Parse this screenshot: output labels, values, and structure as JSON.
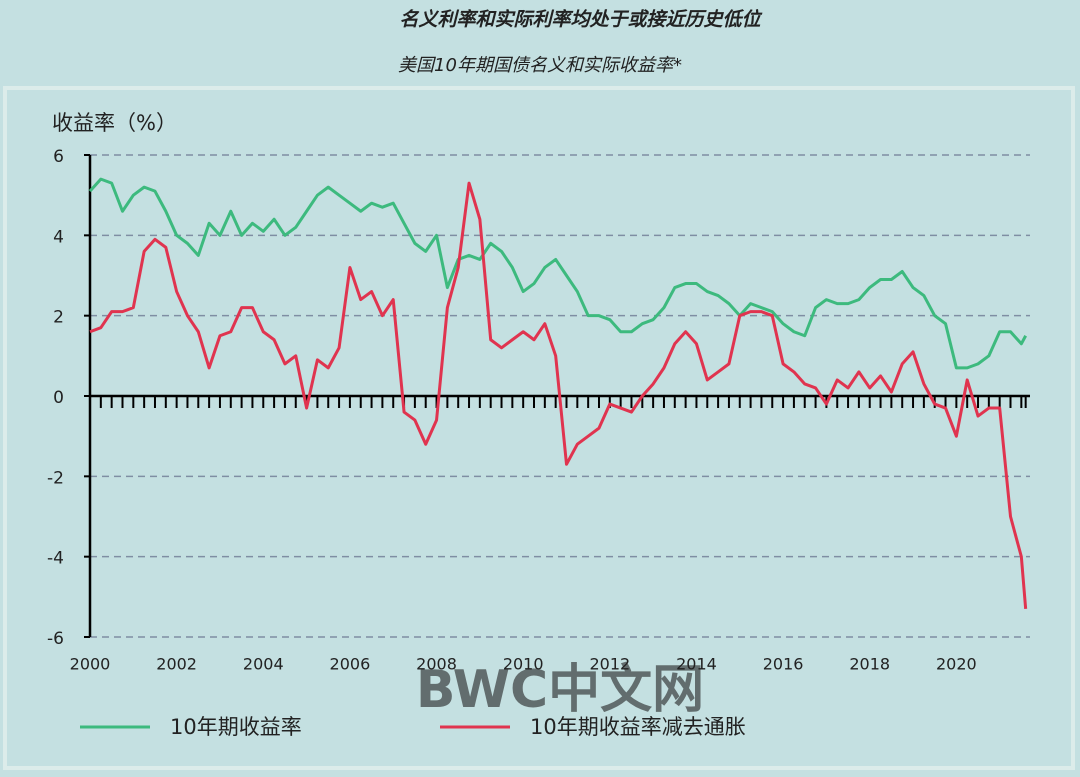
{
  "chart_data": {
    "type": "line",
    "title": "名义利率和实际利率均处于或接近历史低位",
    "subtitle": "美国10年期国债名义和实际收益率*",
    "y_label": "收益率（%）",
    "watermark": "BWC中文网",
    "x": [
      2000,
      2000.25,
      2000.5,
      2000.75,
      2001,
      2001.25,
      2001.5,
      2001.75,
      2002,
      2002.25,
      2002.5,
      2002.75,
      2003,
      2003.25,
      2003.5,
      2003.75,
      2004,
      2004.25,
      2004.5,
      2004.75,
      2005,
      2005.25,
      2005.5,
      2005.75,
      2006,
      2006.25,
      2006.5,
      2006.75,
      2007,
      2007.25,
      2007.5,
      2007.75,
      2008,
      2008.25,
      2008.5,
      2008.75,
      2009,
      2009.25,
      2009.5,
      2009.75,
      2010,
      2010.25,
      2010.5,
      2010.75,
      2011,
      2011.25,
      2011.5,
      2011.75,
      2012,
      2012.25,
      2012.5,
      2012.75,
      2013,
      2013.25,
      2013.5,
      2013.75,
      2014,
      2014.25,
      2014.5,
      2014.75,
      2015,
      2015.25,
      2015.5,
      2015.75,
      2016,
      2016.25,
      2016.5,
      2016.75,
      2017,
      2017.25,
      2017.5,
      2017.75,
      2018,
      2018.25,
      2018.5,
      2018.75,
      2019,
      2019.25,
      2019.5,
      2019.75,
      2020,
      2020.25,
      2020.5,
      2020.75,
      2021,
      2021.25,
      2021.5,
      2021.6
    ],
    "series": [
      {
        "name": "10年期收益率",
        "color": "#3dba7e",
        "values": [
          5.1,
          5.4,
          5.3,
          4.6,
          5.0,
          5.2,
          5.1,
          4.6,
          4.0,
          3.8,
          3.5,
          4.3,
          4.0,
          4.6,
          4.0,
          4.3,
          4.1,
          4.4,
          4.0,
          4.2,
          4.6,
          5.0,
          5.2,
          5.0,
          4.8,
          4.6,
          4.8,
          4.7,
          4.8,
          4.3,
          3.8,
          3.6,
          4.0,
          2.7,
          3.4,
          3.5,
          3.4,
          3.8,
          3.6,
          3.2,
          2.6,
          2.8,
          3.2,
          3.4,
          3.0,
          2.6,
          2.0,
          2.0,
          1.9,
          1.6,
          1.6,
          1.8,
          1.9,
          2.2,
          2.7,
          2.8,
          2.8,
          2.6,
          2.5,
          2.3,
          2.0,
          2.3,
          2.2,
          2.1,
          1.8,
          1.6,
          1.5,
          2.2,
          2.4,
          2.3,
          2.3,
          2.4,
          2.7,
          2.9,
          2.9,
          3.1,
          2.7,
          2.5,
          2.0,
          1.8,
          0.7,
          0.7,
          0.8,
          1.0,
          1.6,
          1.6,
          1.3,
          1.5
        ]
      },
      {
        "name": "10年期收益率减去通胀",
        "color": "#e0344f",
        "values": [
          1.6,
          1.7,
          2.1,
          2.1,
          2.2,
          3.6,
          3.9,
          3.7,
          2.6,
          2.0,
          1.6,
          0.7,
          1.5,
          1.6,
          2.2,
          2.2,
          1.6,
          1.4,
          0.8,
          1.0,
          -0.3,
          0.9,
          0.7,
          1.2,
          3.2,
          2.4,
          2.6,
          2.0,
          2.4,
          -0.4,
          -0.6,
          -1.2,
          -0.6,
          2.2,
          3.2,
          5.3,
          4.4,
          1.4,
          1.2,
          1.4,
          1.6,
          1.4,
          1.8,
          1.0,
          -1.7,
          -1.2,
          -1.0,
          -0.8,
          -0.2,
          -0.3,
          -0.4,
          0.0,
          0.3,
          0.7,
          1.3,
          1.6,
          1.3,
          0.4,
          0.6,
          0.8,
          2.0,
          2.1,
          2.1,
          2.0,
          0.8,
          0.6,
          0.3,
          0.2,
          -0.2,
          0.4,
          0.2,
          0.6,
          0.2,
          0.5,
          0.1,
          0.8,
          1.1,
          0.3,
          -0.2,
          -0.3,
          -1.0,
          0.4,
          -0.5,
          -0.3,
          -0.3,
          -3.0,
          -4.0,
          -5.3
        ]
      }
    ],
    "xlim": [
      2000,
      2021.7
    ],
    "xticks": [
      2000,
      2002,
      2004,
      2006,
      2008,
      2010,
      2012,
      2014,
      2016,
      2018,
      2020
    ],
    "ylim": [
      -6,
      6
    ],
    "yticks": [
      -6,
      -4,
      -2,
      0,
      2,
      4,
      6
    ],
    "grid": true,
    "legend": "bottom"
  }
}
